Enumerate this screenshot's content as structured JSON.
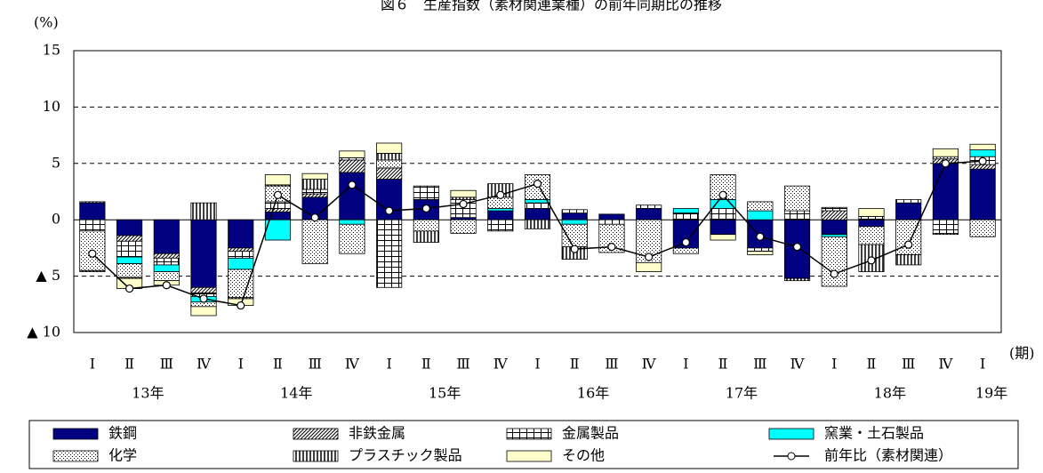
{
  "chart_data": {
    "type": "stacked-bar-line",
    "title": "図６　生産指数（素材関連業種）の前年同期比の推移",
    "y_unit": "(%)",
    "x_unit": "(期)",
    "categories": [
      "Ⅰ",
      "Ⅱ",
      "Ⅲ",
      "Ⅳ",
      "Ⅰ",
      "Ⅱ",
      "Ⅲ",
      "Ⅳ",
      "Ⅰ",
      "Ⅱ",
      "Ⅲ",
      "Ⅳ",
      "Ⅰ",
      "Ⅱ",
      "Ⅲ",
      "Ⅳ",
      "Ⅰ",
      "Ⅱ",
      "Ⅲ",
      "Ⅳ",
      "Ⅰ",
      "Ⅱ",
      "Ⅲ",
      "Ⅳ",
      "Ⅰ"
    ],
    "groups": [
      {
        "label": "13年",
        "size": 4
      },
      {
        "label": "14年",
        "size": 4
      },
      {
        "label": "15年",
        "size": 4
      },
      {
        "label": "16年",
        "size": 4
      },
      {
        "label": "17年",
        "size": 4
      },
      {
        "label": "18年",
        "size": 4
      },
      {
        "label": "19年",
        "size": 1
      }
    ],
    "ylim": [
      -10,
      15
    ],
    "yticks": [
      {
        "value": -10,
        "label": "▲ 10"
      },
      {
        "value": -5,
        "label": "▲ 5"
      },
      0,
      5,
      10,
      15
    ],
    "grid": true,
    "series": [
      {
        "name": "鉄鋼",
        "color": "#000080",
        "pattern": "solid",
        "values": [
          1.5,
          -1.4,
          -3.0,
          -6.0,
          -2.5,
          0.7,
          2.0,
          4.2,
          3.6,
          1.8,
          0.2,
          0.8,
          1.0,
          0.6,
          0.5,
          1.0,
          -2.5,
          -1.3,
          -2.5,
          -5.2,
          -1.3,
          -0.6,
          1.5,
          5.0,
          4.5
        ]
      },
      {
        "name": "非鉄金属",
        "color": "#000000",
        "pattern": "diagonal",
        "values": [
          0.1,
          -0.5,
          -0.4,
          -0.5,
          -0.3,
          0.3,
          0.3,
          1.1,
          1.0,
          0,
          0,
          0,
          0,
          0,
          0,
          0,
          0,
          0,
          0,
          0,
          0.8,
          0,
          0,
          0.4,
          0.4
        ]
      },
      {
        "name": "金属製品",
        "color": "#000000",
        "pattern": "grid",
        "values": [
          -1.0,
          -1.4,
          -0.6,
          -0.3,
          -0.6,
          0.6,
          0.4,
          0.2,
          -6.0,
          1.2,
          1.6,
          -1.0,
          0.5,
          0.3,
          -0.4,
          0.3,
          0.6,
          1.0,
          -0.3,
          0.8,
          0.3,
          0.3,
          0.3,
          -1.2,
          0.7
        ]
      },
      {
        "name": "窯業・土石製品",
        "color": "#00ffff",
        "pattern": "solid",
        "values": [
          0,
          -0.6,
          -0.6,
          -0.5,
          -1.0,
          -1.8,
          0,
          -0.4,
          0,
          0,
          0,
          0.2,
          0.3,
          -0.4,
          0,
          0,
          0.4,
          0.8,
          0.8,
          0,
          -0.2,
          0,
          0,
          0,
          0.6
        ]
      },
      {
        "name": "化学",
        "color": "#000000",
        "pattern": "dots",
        "values": [
          -3.5,
          -1.2,
          -0.8,
          -0.4,
          -2.5,
          1.4,
          -3.9,
          -2.6,
          0.7,
          -1.0,
          -1.2,
          1.0,
          2.2,
          -2.0,
          -2.5,
          -3.8,
          -0.5,
          2.2,
          0.8,
          2.2,
          -4.4,
          -1.6,
          -3.1,
          0.2,
          -1.5
        ]
      },
      {
        "name": "プラスチック製品",
        "color": "#000000",
        "pattern": "vertical",
        "values": [
          -0.1,
          -0.1,
          0,
          1.5,
          -0.1,
          0.1,
          0.9,
          0,
          0.6,
          -1.0,
          0.2,
          1.2,
          -0.8,
          -1.1,
          0,
          0,
          0,
          0,
          0,
          -0.2,
          0,
          -2.4,
          -0.9,
          -0.1,
          0
        ]
      },
      {
        "name": "その他",
        "color": "#ffffcc",
        "pattern": "solid",
        "values": [
          0,
          -0.9,
          -0.4,
          -0.8,
          -0.6,
          0.9,
          0.5,
          0.6,
          0.9,
          0,
          0.6,
          0,
          0,
          0,
          0,
          -0.8,
          0,
          -0.5,
          -0.3,
          0,
          0,
          0.7,
          0,
          0.7,
          0.5
        ]
      }
    ],
    "line": {
      "name": "前年比（素材関連）",
      "color": "#000000",
      "values": [
        -3.0,
        -6.1,
        -5.8,
        -7.0,
        -7.6,
        2.2,
        0.2,
        3.1,
        0.8,
        1.0,
        1.4,
        2.2,
        3.2,
        -2.6,
        -2.4,
        -3.3,
        -2.0,
        2.2,
        -1.5,
        -2.4,
        -4.8,
        -3.6,
        -2.2,
        5.0,
        5.2
      ]
    }
  }
}
